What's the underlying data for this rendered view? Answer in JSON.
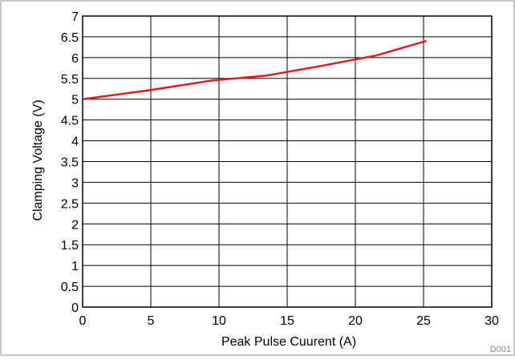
{
  "figure_id": "D001",
  "chart_data": {
    "type": "line",
    "xlabel": "Peak Pulse Cuurent (A)",
    "ylabel": "Clamping Voltage (V)",
    "xlim": [
      0,
      30
    ],
    "ylim": [
      0,
      7
    ],
    "x_ticks": [
      "0",
      "5",
      "10",
      "15",
      "20",
      "25",
      "30"
    ],
    "y_ticks": [
      "0",
      "0.5",
      "1",
      "1.5",
      "2",
      "2.5",
      "3",
      "3.5",
      "4",
      "4.5",
      "5",
      "5.5",
      "6",
      "6.5",
      "7"
    ],
    "grid": true,
    "series": [
      {
        "color": "#e31a1c",
        "x": [
          0,
          5,
          9.5,
          13.5,
          17.5,
          21.5,
          25.2
        ],
        "y": [
          5.0,
          5.22,
          5.45,
          5.57,
          5.8,
          6.05,
          6.4
        ]
      }
    ]
  }
}
